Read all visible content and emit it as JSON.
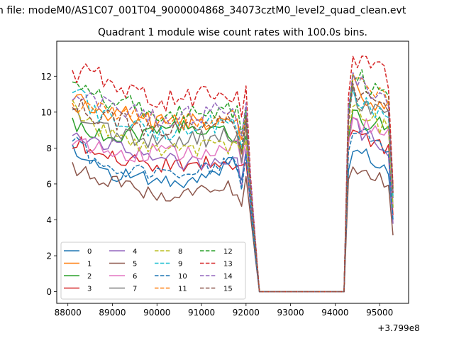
{
  "chart_data": {
    "type": "line",
    "suptitle": "n file: modeM0/AS1C07_001T04_9000004868_34073cztM0_level2_quad_clean.evt",
    "title": "Quadrant 1 module wise count rates with 100.0s bins.",
    "xlabel": "",
    "ylabel": "",
    "x_offset_label": "+3.799e8",
    "xlim": [
      87750,
      95650
    ],
    "ylim": [
      -0.65,
      13.95
    ],
    "xticks": [
      88000,
      89000,
      90000,
      91000,
      92000,
      93000,
      94000,
      95000
    ],
    "yticks": [
      0,
      2,
      4,
      6,
      8,
      10,
      12
    ],
    "xticklabels": [
      "88000",
      "89000",
      "90000",
      "91000",
      "92000",
      "93000",
      "94000",
      "95000"
    ],
    "yticklabels": [
      "0",
      "2",
      "4",
      "6",
      "8",
      "10",
      "12"
    ],
    "grid": false,
    "legend_position": "lower-left",
    "legend_columns": 4,
    "profile_note": "Each series is a piecewise-linear count rate: rates near 'levels' during 88100-91800, a dip to the 'dip' value at ~92000, zero during 92300-94200, and a rise to 'peak' after ~94400, ending at 'end' at 95300.",
    "time_points": [
      88100,
      88500,
      89000,
      89500,
      90000,
      90500,
      91000,
      91500,
      91800,
      91900,
      92000,
      92100,
      92300,
      94200,
      94300,
      94400,
      94600,
      94800,
      95000,
      95200,
      95300
    ],
    "series": [
      {
        "name": "0",
        "color": "#1f77b4",
        "dash": "solid",
        "values": [
          8.0,
          7.0,
          6.6,
          6.4,
          6.2,
          6.1,
          6.5,
          7.0,
          7.2,
          6.5,
          7.8,
          5.0,
          0,
          0,
          7.0,
          8.0,
          7.6,
          7.4,
          7.2,
          6.8,
          4.2
        ]
      },
      {
        "name": "1",
        "color": "#ff7f0e",
        "dash": "solid",
        "values": [
          11.0,
          10.2,
          9.9,
          9.7,
          9.4,
          9.3,
          9.5,
          9.8,
          9.4,
          8.0,
          9.4,
          5.5,
          0,
          0,
          9.5,
          11.5,
          11.0,
          10.6,
          10.4,
          10.2,
          5.2
        ]
      },
      {
        "name": "2",
        "color": "#2ca02c",
        "dash": "solid",
        "values": [
          9.4,
          9.0,
          8.6,
          8.7,
          9.0,
          9.3,
          8.8,
          9.0,
          8.6,
          7.6,
          9.0,
          5.4,
          0,
          0,
          9.0,
          10.0,
          9.6,
          9.4,
          9.5,
          9.0,
          5.0
        ]
      },
      {
        "name": "3",
        "color": "#d62728",
        "dash": "solid",
        "values": [
          8.4,
          7.9,
          7.5,
          7.3,
          7.0,
          7.0,
          7.1,
          7.2,
          7.3,
          6.8,
          7.5,
          5.0,
          0,
          0,
          8.0,
          9.0,
          8.6,
          8.4,
          8.2,
          7.9,
          4.4
        ]
      },
      {
        "name": "4",
        "color": "#9467bd",
        "dash": "solid",
        "values": [
          8.5,
          8.3,
          8.0,
          7.6,
          7.3,
          7.2,
          7.1,
          7.3,
          7.0,
          5.8,
          7.6,
          4.6,
          0,
          0,
          8.6,
          9.4,
          8.9,
          8.6,
          8.4,
          8.0,
          4.0
        ]
      },
      {
        "name": "5",
        "color": "#8c564b",
        "dash": "solid",
        "values": [
          7.0,
          6.5,
          6.1,
          5.8,
          5.3,
          5.4,
          5.6,
          5.9,
          5.7,
          4.6,
          6.2,
          4.2,
          0,
          0,
          6.0,
          6.6,
          6.5,
          6.6,
          6.4,
          6.0,
          3.4
        ]
      },
      {
        "name": "6",
        "color": "#e377c2",
        "dash": "solid",
        "values": [
          8.5,
          8.1,
          7.6,
          7.7,
          7.8,
          7.6,
          7.7,
          8.0,
          8.0,
          7.0,
          8.5,
          5.4,
          0,
          0,
          8.6,
          9.6,
          9.3,
          9.2,
          9.2,
          8.7,
          4.6
        ]
      },
      {
        "name": "7",
        "color": "#7f7f7f",
        "dash": "solid",
        "values": [
          10.1,
          9.4,
          8.9,
          8.6,
          8.3,
          8.3,
          8.5,
          8.6,
          8.5,
          7.0,
          9.5,
          5.5,
          0,
          0,
          9.8,
          11.0,
          10.5,
          10.2,
          10.0,
          9.6,
          5.0
        ]
      },
      {
        "name": "8",
        "color": "#bcbd22",
        "dash": "dashed",
        "values": [
          10.4,
          9.2,
          8.6,
          8.2,
          7.9,
          7.8,
          8.0,
          8.2,
          8.0,
          7.6,
          8.8,
          5.5,
          0,
          0,
          9.0,
          10.2,
          9.8,
          9.5,
          9.3,
          9.0,
          4.8
        ]
      },
      {
        "name": "9",
        "color": "#17becf",
        "dash": "dashed",
        "values": [
          11.3,
          10.2,
          9.5,
          9.1,
          8.8,
          8.9,
          9.2,
          9.4,
          9.3,
          8.0,
          9.6,
          5.8,
          0,
          0,
          9.6,
          11.2,
          10.6,
          10.3,
          10.0,
          9.6,
          5.2
        ]
      },
      {
        "name": "10",
        "color": "#1f77b4",
        "dash": "dashed",
        "values": [
          8.4,
          7.5,
          7.0,
          6.7,
          6.6,
          6.5,
          6.8,
          7.0,
          7.2,
          6.0,
          7.8,
          4.8,
          0,
          0,
          8.2,
          9.0,
          8.7,
          8.5,
          8.3,
          8.0,
          4.3
        ]
      },
      {
        "name": "11",
        "color": "#ff7f0e",
        "dash": "dashed",
        "values": [
          10.2,
          10.5,
          10.0,
          9.8,
          9.6,
          9.5,
          9.6,
          9.8,
          9.6,
          8.2,
          9.8,
          5.8,
          0,
          0,
          10.0,
          12.0,
          11.5,
          11.2,
          11.0,
          10.6,
          5.5
        ]
      },
      {
        "name": "12",
        "color": "#2ca02c",
        "dash": "dashed",
        "values": [
          11.6,
          11.2,
          10.6,
          10.3,
          10.0,
          9.9,
          10.0,
          10.2,
          10.0,
          8.6,
          10.4,
          6.0,
          0,
          0,
          10.4,
          12.2,
          11.8,
          11.5,
          11.2,
          10.8,
          5.6
        ]
      },
      {
        "name": "13",
        "color": "#d62728",
        "dash": "dashed",
        "values": [
          12.2,
          12.2,
          11.6,
          11.2,
          10.6,
          10.7,
          10.9,
          11.1,
          10.6,
          9.4,
          11.0,
          6.6,
          0,
          0,
          10.8,
          13.2,
          12.6,
          12.4,
          12.2,
          11.8,
          6.0
        ]
      },
      {
        "name": "14",
        "color": "#9467bd",
        "dash": "dashed",
        "values": [
          11.2,
          10.8,
          10.4,
          10.0,
          9.8,
          9.7,
          9.9,
          10.0,
          9.8,
          8.6,
          10.0,
          6.2,
          0,
          0,
          10.2,
          11.8,
          11.4,
          11.0,
          10.8,
          10.4,
          5.6
        ]
      },
      {
        "name": "15",
        "color": "#8c564b",
        "dash": "dashed",
        "values": [
          10.6,
          10.0,
          9.6,
          9.3,
          9.0,
          8.9,
          9.1,
          9.3,
          9.1,
          8.2,
          9.4,
          5.7,
          0,
          0,
          9.5,
          11.0,
          10.8,
          10.5,
          10.2,
          9.8,
          5.2
        ]
      }
    ]
  }
}
